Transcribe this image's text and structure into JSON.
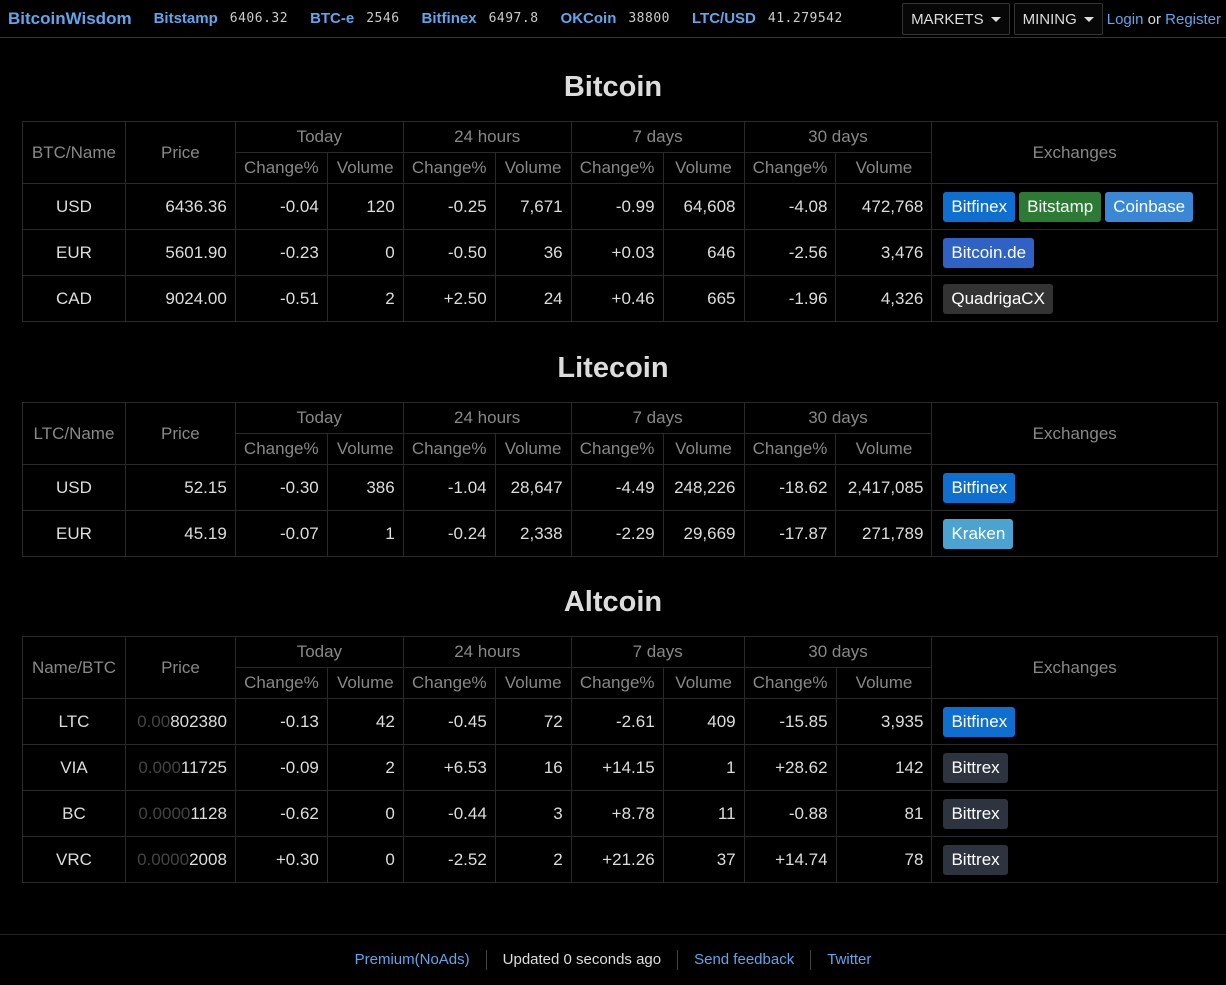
{
  "header": {
    "brand": "BitcoinWisdom",
    "ticker": [
      {
        "exchange": "Bitstamp",
        "price": "6406.32"
      },
      {
        "exchange": "BTC-e",
        "price": "2546"
      },
      {
        "exchange": "Bitfinex",
        "price": "6497.8"
      },
      {
        "exchange": "OKCoin",
        "price": "38800"
      },
      {
        "exchange": "LTC/USD",
        "price": "41.279542"
      }
    ],
    "markets_label": "MARKETS",
    "mining_label": "MINING",
    "login_label": "Login",
    "or_label": "or",
    "register_label": "Register"
  },
  "columns": {
    "price": "Price",
    "today": "Today",
    "h24": "24 hours",
    "d7": "7 days",
    "d30": "30 days",
    "change": "Change%",
    "volume": "Volume",
    "exchanges": "Exchanges"
  },
  "bitcoin": {
    "title": "Bitcoin",
    "name_header": "BTC/Name",
    "rows": [
      {
        "name": "USD",
        "price": "6436.36",
        "today_chg": "-0.04",
        "today_vol": "120",
        "h24_chg": "-0.25",
        "h24_vol": "7,671",
        "d7_chg": "-0.99",
        "d7_vol": "64,608",
        "d30_chg": "-4.08",
        "d30_vol": "472,768",
        "exchanges": [
          "Bitfinex",
          "Bitstamp",
          "Coinbase"
        ]
      },
      {
        "name": "EUR",
        "price": "5601.90",
        "today_chg": "-0.23",
        "today_vol": "0",
        "h24_chg": "-0.50",
        "h24_vol": "36",
        "d7_chg": "+0.03",
        "d7_vol": "646",
        "d30_chg": "-2.56",
        "d30_vol": "3,476",
        "exchanges": [
          "Bitcoin.de"
        ]
      },
      {
        "name": "CAD",
        "price": "9024.00",
        "today_chg": "-0.51",
        "today_vol": "2",
        "h24_chg": "+2.50",
        "h24_vol": "24",
        "d7_chg": "+0.46",
        "d7_vol": "665",
        "d30_chg": "-1.96",
        "d30_vol": "4,326",
        "exchanges": [
          "QuadrigaCX"
        ]
      }
    ]
  },
  "litecoin": {
    "title": "Litecoin",
    "name_header": "LTC/Name",
    "rows": [
      {
        "name": "USD",
        "price": "52.15",
        "today_chg": "-0.30",
        "today_vol": "386",
        "h24_chg": "-1.04",
        "h24_vol": "28,647",
        "d7_chg": "-4.49",
        "d7_vol": "248,226",
        "d30_chg": "-18.62",
        "d30_vol": "2,417,085",
        "exchanges": [
          "Bitfinex"
        ]
      },
      {
        "name": "EUR",
        "price": "45.19",
        "today_chg": "-0.07",
        "today_vol": "1",
        "h24_chg": "-0.24",
        "h24_vol": "2,338",
        "d7_chg": "-2.29",
        "d7_vol": "29,669",
        "d30_chg": "-17.87",
        "d30_vol": "271,789",
        "exchanges": [
          "Kraken"
        ]
      }
    ]
  },
  "altcoin": {
    "title": "Altcoin",
    "name_header": "Name/BTC",
    "rows": [
      {
        "name": "LTC",
        "price_dim": "0.00",
        "price_main": "802380",
        "today_chg": "-0.13",
        "today_vol": "42",
        "h24_chg": "-0.45",
        "h24_vol": "72",
        "d7_chg": "-2.61",
        "d7_vol": "409",
        "d30_chg": "-15.85",
        "d30_vol": "3,935",
        "exchanges": [
          "Bitfinex"
        ]
      },
      {
        "name": "VIA",
        "price_dim": "0.000",
        "price_main": "11725",
        "today_chg": "-0.09",
        "today_vol": "2",
        "h24_chg": "+6.53",
        "h24_vol": "16",
        "d7_chg": "+14.15",
        "d7_vol": "1",
        "d30_chg": "+28.62",
        "d30_vol": "142",
        "exchanges": [
          "Bittrex"
        ]
      },
      {
        "name": "BC",
        "price_dim": "0.0000",
        "price_main": "1128",
        "today_chg": "-0.62",
        "today_vol": "0",
        "h24_chg": "-0.44",
        "h24_vol": "3",
        "d7_chg": "+8.78",
        "d7_vol": "11",
        "d30_chg": "-0.88",
        "d30_vol": "81",
        "exchanges": [
          "Bittrex"
        ]
      },
      {
        "name": "VRC",
        "price_dim": "0.0000",
        "price_main": "2008",
        "today_chg": "+0.30",
        "today_vol": "0",
        "h24_chg": "-2.52",
        "h24_vol": "2",
        "d7_chg": "+21.26",
        "d7_vol": "37",
        "d30_chg": "+14.74",
        "d30_vol": "78",
        "exchanges": [
          "Bittrex"
        ]
      }
    ]
  },
  "footer": {
    "premium": "Premium(NoAds)",
    "updated": "Updated 0 seconds ago",
    "feedback": "Send feedback",
    "twitter": "Twitter"
  },
  "colors": {
    "accent": "#5fa6ec",
    "negative": "#e0392e",
    "positive": "#3ec43e",
    "exchange_buttons": {
      "Bitfinex": "#0f6fd0",
      "Bitstamp": "#2c7a34",
      "Coinbase": "#3a87d6",
      "Bitcoin.de": "#2f62c4",
      "QuadrigaCX": "#333333",
      "Kraken": "#4aa3d1",
      "Bittrex": "#2d3440"
    }
  }
}
